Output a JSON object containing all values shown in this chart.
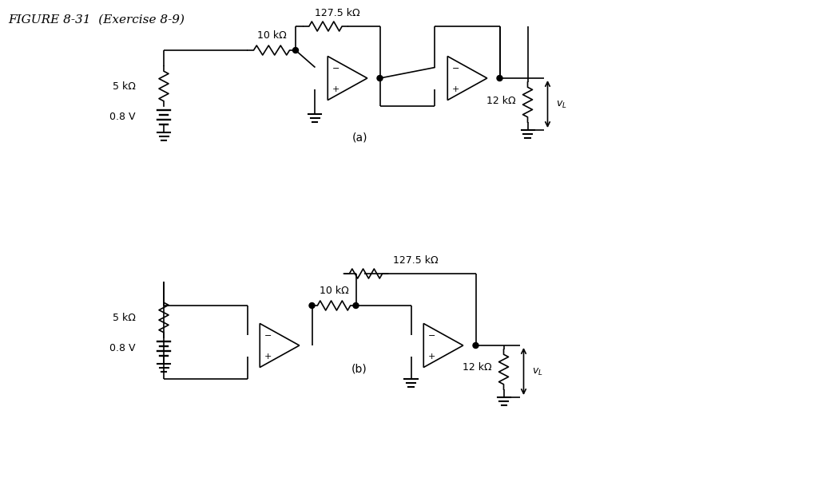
{
  "title": "FIGURE 8-31  (Exercise 8-9)",
  "label_a": "(a)",
  "label_b": "(b)",
  "bg_color": "#ffffff",
  "line_color": "#000000",
  "font_size_title": 11,
  "font_size_label": 10,
  "font_size_component": 9
}
